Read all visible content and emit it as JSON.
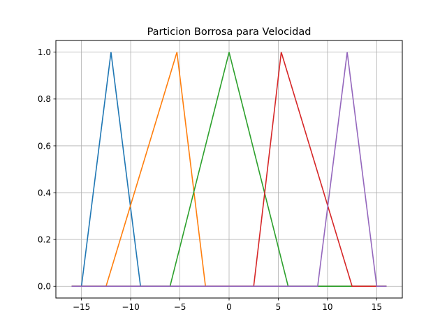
{
  "chart_data": {
    "type": "line",
    "title": "Particion Borrosa para Velocidad",
    "xlabel": "",
    "ylabel": "",
    "xlim": [
      -17.6,
      17.6
    ],
    "ylim": [
      -0.05,
      1.05
    ],
    "grid": true,
    "x_ticks": [
      -15,
      -10,
      -5,
      0,
      5,
      10,
      15
    ],
    "x_tick_labels": [
      "−15",
      "−10",
      "−5",
      "0",
      "5",
      "10",
      "15"
    ],
    "y_ticks": [
      0.0,
      0.2,
      0.4,
      0.6,
      0.8,
      1.0
    ],
    "y_tick_labels": [
      "0.0",
      "0.2",
      "0.4",
      "0.6",
      "0.8",
      "1.0"
    ],
    "series": [
      {
        "color": "#1f77b4",
        "x": [
          -16,
          -15,
          -12,
          -9,
          16
        ],
        "y": [
          0,
          0,
          1,
          0,
          0
        ]
      },
      {
        "color": "#ff7f0e",
        "x": [
          -16,
          -12.5,
          -5.3,
          -2.4,
          16
        ],
        "y": [
          0,
          0,
          1,
          0,
          0
        ]
      },
      {
        "color": "#2ca02c",
        "x": [
          -16,
          -6,
          0,
          6,
          16
        ],
        "y": [
          0,
          0,
          1,
          0,
          0
        ]
      },
      {
        "color": "#d62728",
        "x": [
          -16,
          2.5,
          5.3,
          12.5,
          16
        ],
        "y": [
          0,
          0,
          1,
          0,
          0
        ]
      },
      {
        "color": "#9467bd",
        "x": [
          -16,
          9,
          12,
          15,
          16
        ],
        "y": [
          0,
          0,
          1,
          0,
          0
        ]
      }
    ]
  }
}
